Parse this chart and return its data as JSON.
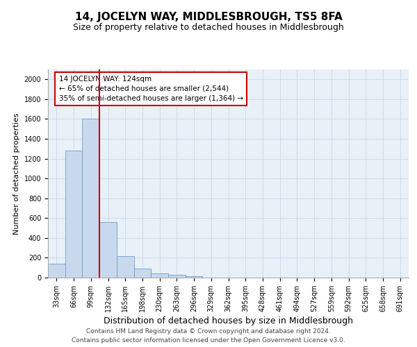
{
  "title": "14, JOCELYN WAY, MIDDLESBROUGH, TS5 8FA",
  "subtitle": "Size of property relative to detached houses in Middlesbrough",
  "xlabel": "Distribution of detached houses by size in Middlesbrough",
  "ylabel": "Number of detached properties",
  "categories": [
    "33sqm",
    "66sqm",
    "99sqm",
    "132sqm",
    "165sqm",
    "198sqm",
    "230sqm",
    "263sqm",
    "296sqm",
    "329sqm",
    "362sqm",
    "395sqm",
    "428sqm",
    "461sqm",
    "494sqm",
    "527sqm",
    "559sqm",
    "592sqm",
    "625sqm",
    "658sqm",
    "691sqm"
  ],
  "values": [
    140,
    1280,
    1600,
    560,
    220,
    90,
    45,
    25,
    15,
    0,
    0,
    0,
    0,
    0,
    0,
    0,
    0,
    0,
    0,
    0,
    0
  ],
  "bar_color": "#c9d9ed",
  "bar_edge_color": "#6a9cc9",
  "annotation_lines": [
    "14 JOCELYN WAY: 124sqm",
    "← 65% of detached houses are smaller (2,544)",
    "35% of semi-detached houses are larger (1,364) →"
  ],
  "annotation_box_color": "#ffffff",
  "annotation_box_edge_color": "#cc0000",
  "ylim": [
    0,
    2100
  ],
  "yticks": [
    0,
    200,
    400,
    600,
    800,
    1000,
    1200,
    1400,
    1600,
    1800,
    2000
  ],
  "grid_color": "#c8d8e8",
  "plot_bg_color": "#e8f0f8",
  "footer_line1": "Contains HM Land Registry data © Crown copyright and database right 2024.",
  "footer_line2": "Contains public sector information licensed under the Open Government Licence v3.0.",
  "title_fontsize": 11,
  "subtitle_fontsize": 9,
  "xlabel_fontsize": 9,
  "ylabel_fontsize": 8,
  "tick_fontsize": 7,
  "annotation_fontsize": 7.5,
  "footer_fontsize": 6.5,
  "red_line_color": "#cc0000",
  "red_line_x": 2.5
}
